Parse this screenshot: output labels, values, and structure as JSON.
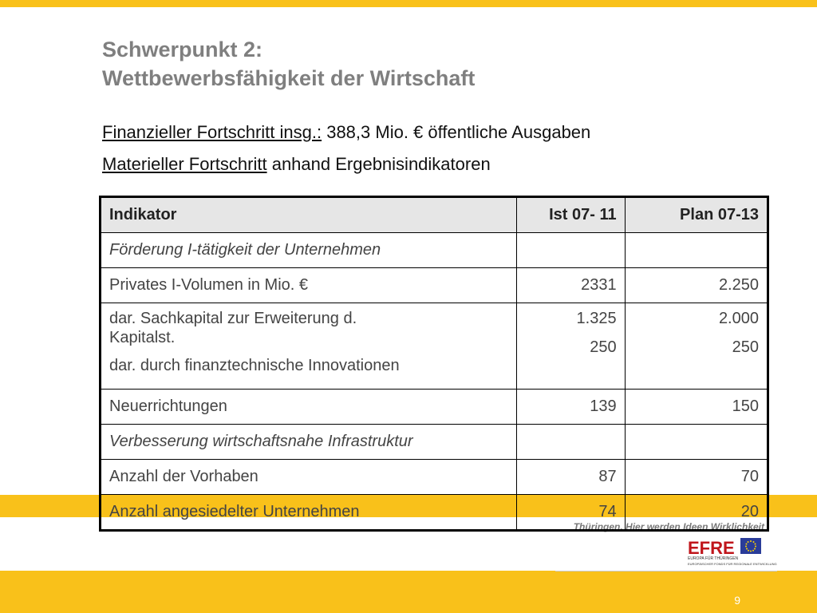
{
  "slide": {
    "title_line1": "Schwerpunkt 2:",
    "title_line2": "Wettbewerbsfähigkeit der Wirtschaft",
    "sub1_underlined": "Finanzieller Fortschritt insg.:",
    "sub1_rest": " 388,3 Mio. € öffentliche Ausgaben",
    "sub2_underlined": "Materieller Fortschritt",
    "sub2_rest": " anhand Ergebnisindikatoren",
    "page_number": "9"
  },
  "table": {
    "headers": [
      "Indikator",
      "Ist 07- 11",
      "Plan 07-13"
    ],
    "section1": "Förderung I-tätigkeit der Unternehmen",
    "row_privates": {
      "label": "Privates I-Volumen in Mio. €",
      "ist": "2331",
      "plan": "2.250"
    },
    "row_sach": {
      "label_a": "dar. Sachkapital zur Erweiterung d.",
      "label_b": "Kapitalst.",
      "label_c": "dar. durch finanztechnische Innovationen",
      "ist_a": "1.325",
      "ist_b": "250",
      "plan_a": "2.000",
      "plan_b": "250"
    },
    "row_neu": {
      "label": "Neuerrichtungen",
      "ist": "139",
      "plan": "150"
    },
    "section2": "Verbesserung wirtschaftsnahe Infrastruktur",
    "row_vorhaben": {
      "label": "Anzahl der Vorhaben",
      "ist": "87",
      "plan": "70"
    },
    "row_unternehmen": {
      "label": "Anzahl angesiedelter Unternehmen",
      "ist": "74",
      "plan": "20"
    }
  },
  "logo": {
    "slogan": "Thüringen. Hier werden Ideen Wirklichkeit",
    "efre": "EFRE",
    "sub1": "EUROPA FÜR THÜRINGEN",
    "sub2": "EUROPÄISCHER FONDS FÜR REGIONALE ENTWICKLUNG"
  },
  "colors": {
    "accent_yellow": "#f9c11a",
    "title_gray": "#7f7f7f",
    "efre_red": "#c0151b",
    "eu_blue": "#2a3c99"
  }
}
